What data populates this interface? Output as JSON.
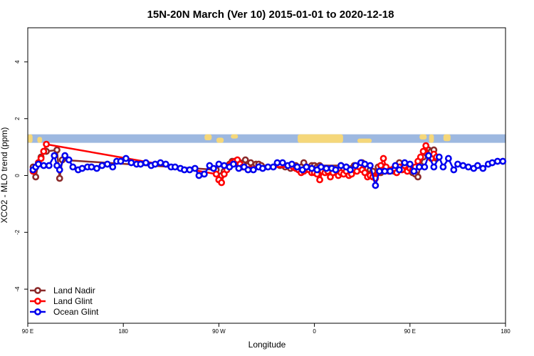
{
  "chart_data": {
    "type": "line",
    "title": "15N-20N March (Ver 10)   2015-01-01 to 2020-12-18",
    "xlabel": "Longitude",
    "ylabel": "XCO2 - MLO trend (ppm)",
    "xlim": [
      90,
      450
    ],
    "ylim": [
      -5.2,
      5.2
    ],
    "x_ticks": [
      {
        "value": 90,
        "label": "90 E"
      },
      {
        "value": 162,
        "label": "180"
      },
      {
        "value": 234,
        "label": "90 W"
      },
      {
        "value": 306,
        "label": "0"
      },
      {
        "value": 378,
        "label": "90 E"
      },
      {
        "value": 450,
        "label": "180"
      }
    ],
    "y_ticks": [
      {
        "value": -4,
        "label": "-4"
      },
      {
        "value": -2,
        "label": "-2"
      },
      {
        "value": 0,
        "label": "0"
      },
      {
        "value": 2,
        "label": "2"
      },
      {
        "value": 4,
        "label": "4"
      }
    ],
    "grid": false,
    "legend_position": "bottom-left",
    "map_band": {
      "ymin": 1.15,
      "ymax": 1.45,
      "ocean_color": "#9db8e0",
      "land_color": "#f5d77a"
    },
    "series": [
      {
        "name": "Land Nadir",
        "color": "#8b2a2a",
        "x": [
          94,
          96,
          98,
          100,
          102,
          104,
          112,
          114,
          116,
          232,
          234,
          236,
          238,
          240,
          242,
          244,
          246,
          248,
          250,
          252,
          254,
          256,
          258,
          260,
          262,
          264,
          266,
          280,
          284,
          288,
          292,
          296,
          298,
          300,
          302,
          304,
          306,
          308,
          310,
          326,
          328,
          330,
          334,
          336,
          338,
          340,
          342,
          346,
          348,
          350,
          354,
          356,
          358,
          366,
          368,
          370,
          372,
          374,
          380,
          382,
          384,
          386,
          388,
          390,
          392,
          394,
          396,
          398
        ],
        "y": [
          0.3,
          -0.05,
          0.45,
          0.65,
          0.85,
          0.85,
          0.9,
          -0.1,
          0.55,
          0.2,
          -0.15,
          0.0,
          0.15,
          0.3,
          0.4,
          0.5,
          0.5,
          0.45,
          0.45,
          0.4,
          0.55,
          0.35,
          0.45,
          0.3,
          0.4,
          0.4,
          0.35,
          0.35,
          0.3,
          0.25,
          0.35,
          0.3,
          0.45,
          0.3,
          0.2,
          0.35,
          0.35,
          0.3,
          0.35,
          0.35,
          0.2,
          0.3,
          0.25,
          0.35,
          0.3,
          0.25,
          0.45,
          0.25,
          0.2,
          0.15,
          0.3,
          0.1,
          0.3,
          0.15,
          0.35,
          0.45,
          0.3,
          0.25,
          0.1,
          0.05,
          -0.05,
          0.35,
          0.65,
          0.8,
          0.9,
          0.85,
          0.9,
          0.6
        ]
      },
      {
        "name": "Land Glint",
        "color": "#ff0000",
        "x": [
          94,
          96,
          98,
          100,
          102,
          104,
          232,
          234,
          236,
          238,
          240,
          242,
          244,
          246,
          248,
          250,
          252,
          290,
          292,
          294,
          296,
          298,
          300,
          302,
          304,
          306,
          308,
          310,
          312,
          314,
          316,
          318,
          320,
          322,
          324,
          326,
          328,
          330,
          332,
          334,
          336,
          338,
          340,
          342,
          344,
          346,
          348,
          350,
          352,
          354,
          356,
          358,
          360,
          362,
          364,
          366,
          368,
          370,
          372,
          374,
          376,
          378,
          380,
          382,
          384,
          386,
          388,
          390,
          392,
          394,
          396,
          398
        ],
        "y": [
          0.15,
          0.3,
          0.45,
          0.6,
          0.85,
          1.1,
          0.05,
          -0.15,
          -0.25,
          0.05,
          0.2,
          0.35,
          0.45,
          0.5,
          0.55,
          0.4,
          0.3,
          0.3,
          0.25,
          0.2,
          0.1,
          0.15,
          0.3,
          0.2,
          0.1,
          0.1,
          0.05,
          -0.15,
          0.15,
          0.1,
          0.15,
          -0.05,
          0.1,
          0.2,
          0.0,
          0.1,
          0.05,
          0.15,
          0.0,
          0.05,
          0.2,
          0.15,
          0.3,
          0.2,
          0.1,
          -0.05,
          0.0,
          -0.05,
          -0.1,
          0.1,
          0.35,
          0.6,
          0.3,
          0.15,
          0.2,
          0.25,
          0.1,
          0.3,
          0.2,
          0.35,
          0.15,
          0.25,
          0.2,
          0.3,
          0.5,
          0.65,
          0.85,
          1.05,
          0.7,
          0.6,
          0.75,
          0.65
        ]
      },
      {
        "name": "Ocean Glint",
        "color": "#0000ee",
        "x": [
          94,
          96,
          98,
          102,
          106,
          110,
          112,
          114,
          118,
          121,
          124,
          128,
          131,
          135,
          138,
          142,
          146,
          150,
          154,
          157,
          160,
          164,
          168,
          172,
          175,
          179,
          183,
          186,
          190,
          194,
          198,
          201,
          205,
          208,
          212,
          216,
          219,
          223,
          227,
          230,
          234,
          238,
          242,
          245,
          249,
          253,
          256,
          260,
          264,
          267,
          271,
          275,
          278,
          282,
          286,
          289,
          293,
          297,
          300,
          304,
          308,
          311,
          315,
          319,
          322,
          326,
          330,
          333,
          337,
          341,
          344,
          348,
          352,
          355,
          359,
          363,
          367,
          370,
          374,
          378,
          381,
          385,
          389,
          392,
          396,
          400,
          403,
          407,
          411,
          414,
          418,
          422,
          426,
          429,
          433,
          437,
          440,
          444,
          448
        ],
        "y": [
          0.2,
          0.3,
          0.4,
          0.35,
          0.35,
          0.7,
          0.35,
          0.2,
          0.7,
          0.55,
          0.3,
          0.2,
          0.25,
          0.3,
          0.3,
          0.25,
          0.35,
          0.4,
          0.3,
          0.5,
          0.5,
          0.6,
          0.45,
          0.4,
          0.4,
          0.45,
          0.35,
          0.4,
          0.45,
          0.4,
          0.3,
          0.3,
          0.25,
          0.2,
          0.2,
          0.25,
          0.0,
          0.05,
          0.35,
          0.25,
          0.4,
          0.35,
          0.3,
          0.4,
          0.25,
          0.3,
          0.2,
          0.2,
          0.3,
          0.25,
          0.3,
          0.3,
          0.45,
          0.45,
          0.35,
          0.4,
          0.3,
          0.2,
          0.3,
          0.25,
          0.2,
          0.3,
          0.25,
          0.25,
          0.2,
          0.35,
          0.3,
          0.2,
          0.35,
          0.45,
          0.4,
          0.35,
          -0.35,
          0.15,
          0.15,
          0.15,
          0.35,
          0.2,
          0.45,
          0.4,
          0.15,
          0.3,
          0.3,
          0.7,
          0.3,
          0.65,
          0.3,
          0.6,
          0.2,
          0.4,
          0.35,
          0.3,
          0.25,
          0.35,
          0.25,
          0.4,
          0.45,
          0.5,
          0.5
        ]
      }
    ]
  }
}
